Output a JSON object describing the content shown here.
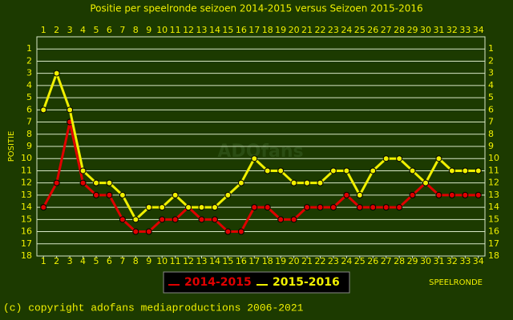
{
  "chart_data": {
    "type": "line",
    "title": "Positie per speelronde seizoen 2014-2015 versus Seizoen 2015-2016",
    "y_label": "POSITIE",
    "x_label": "SPEELRONDE",
    "watermark": "ADOfans",
    "footer": "(c) copyright adofans mediaproductions 2006-2021",
    "x": [
      1,
      2,
      3,
      4,
      5,
      6,
      7,
      8,
      9,
      10,
      11,
      12,
      13,
      14,
      15,
      16,
      17,
      18,
      19,
      20,
      21,
      22,
      23,
      24,
      25,
      26,
      27,
      28,
      29,
      30,
      31,
      32,
      33,
      34
    ],
    "series": [
      {
        "name": "2014-2015",
        "color": "#e00000",
        "values": [
          14,
          12,
          7,
          12,
          13,
          13,
          15,
          16,
          16,
          15,
          15,
          14,
          15,
          15,
          16,
          16,
          14,
          14,
          15,
          15,
          14,
          14,
          14,
          13,
          14,
          14,
          14,
          14,
          13,
          12,
          13,
          13,
          13,
          13
        ]
      },
      {
        "name": "2015-2016",
        "color": "#f0f000",
        "values": [
          6,
          3,
          6,
          11,
          12,
          12,
          13,
          15,
          14,
          14,
          13,
          14,
          14,
          14,
          13,
          12,
          10,
          11,
          11,
          12,
          12,
          12,
          11,
          11,
          13,
          11,
          10,
          10,
          11,
          12,
          10,
          11,
          11,
          11
        ]
      }
    ],
    "xlim": [
      0.5,
      34.5
    ],
    "xticks": [
      1,
      2,
      3,
      4,
      5,
      6,
      7,
      8,
      9,
      10,
      11,
      12,
      13,
      14,
      15,
      16,
      17,
      18,
      19,
      20,
      21,
      22,
      23,
      24,
      25,
      26,
      27,
      28,
      29,
      30,
      31,
      32,
      33,
      34
    ],
    "ylim": [
      18,
      0
    ],
    "yticks": [
      1,
      2,
      3,
      4,
      5,
      6,
      7,
      8,
      9,
      10,
      11,
      12,
      13,
      14,
      15,
      16,
      17,
      18
    ],
    "grid": true
  }
}
